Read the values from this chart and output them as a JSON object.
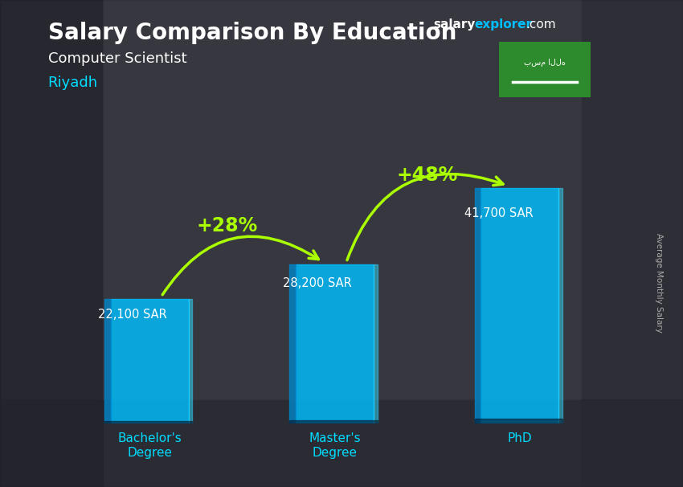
{
  "title": "Salary Comparison By Education",
  "subtitle": "Computer Scientist",
  "location": "Riyadh",
  "ylabel": "Average Monthly Salary",
  "categories": [
    "Bachelor's\nDegree",
    "Master's\nDegree",
    "PhD"
  ],
  "values": [
    22100,
    28200,
    41700
  ],
  "labels": [
    "22,100 SAR",
    "28,200 SAR",
    "41,700 SAR"
  ],
  "pct_labels": [
    "+28%",
    "+48%"
  ],
  "bar_color_main": "#00BFFF",
  "bar_color_left": "#0088CC",
  "bar_color_right": "#33DDFF",
  "bar_alpha": 0.82,
  "title_color": "#FFFFFF",
  "subtitle_color": "#FFFFFF",
  "location_color": "#00DDFF",
  "label_color": "#FFFFFF",
  "pct_color": "#AAFF00",
  "bg_color": "#3a3a3a",
  "xticklabel_color": "#00DDFF",
  "watermark_salary_color": "#FFFFFF",
  "watermark_explorer_color": "#00BFFF",
  "watermark_dot_com_color": "#FFFFFF",
  "ylim": [
    0,
    50000
  ],
  "bar_width": 0.42
}
